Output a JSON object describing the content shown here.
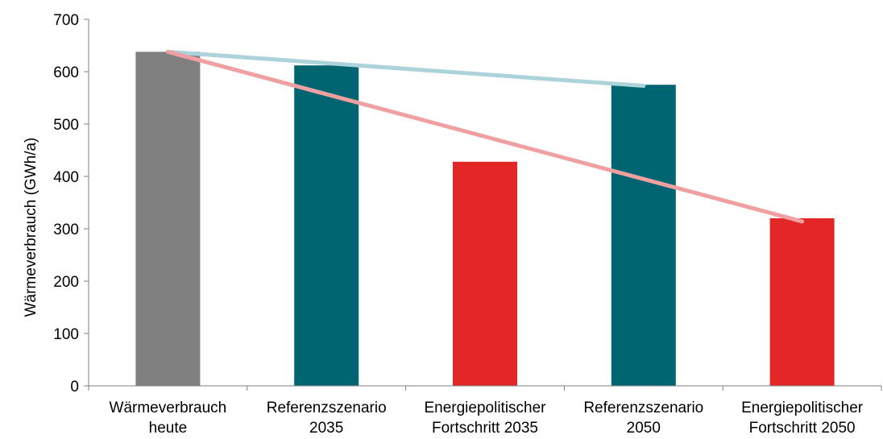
{
  "chart_data": {
    "type": "bar",
    "ylabel": "Wärmeverbrauch (GWh/a)",
    "ylim": [
      0,
      700
    ],
    "yticks": [
      0,
      100,
      200,
      300,
      400,
      500,
      600,
      700
    ],
    "grid": false,
    "categories": [
      [
        "Wärmeverbrauch",
        "heute"
      ],
      [
        "Referenzszenario",
        "2035"
      ],
      [
        "Energiepolitischer",
        "Fortschritt 2035"
      ],
      [
        "Referenzszenario",
        "2050"
      ],
      [
        "Energiepolitischer",
        "Fortschritt 2050"
      ]
    ],
    "values": [
      638,
      612,
      428,
      575,
      320
    ],
    "bar_colors": [
      "#808080",
      "#006570",
      "#e32626",
      "#006570",
      "#e32626"
    ],
    "trend_lines": [
      {
        "color": "#acd2dc",
        "from": {
          "category": 0,
          "value": 638
        },
        "to": {
          "category": 3,
          "value": 573
        }
      },
      {
        "color": "#f0a0a0",
        "from": {
          "category": 0,
          "value": 638
        },
        "to": {
          "category": 4,
          "value": 314
        }
      }
    ]
  }
}
